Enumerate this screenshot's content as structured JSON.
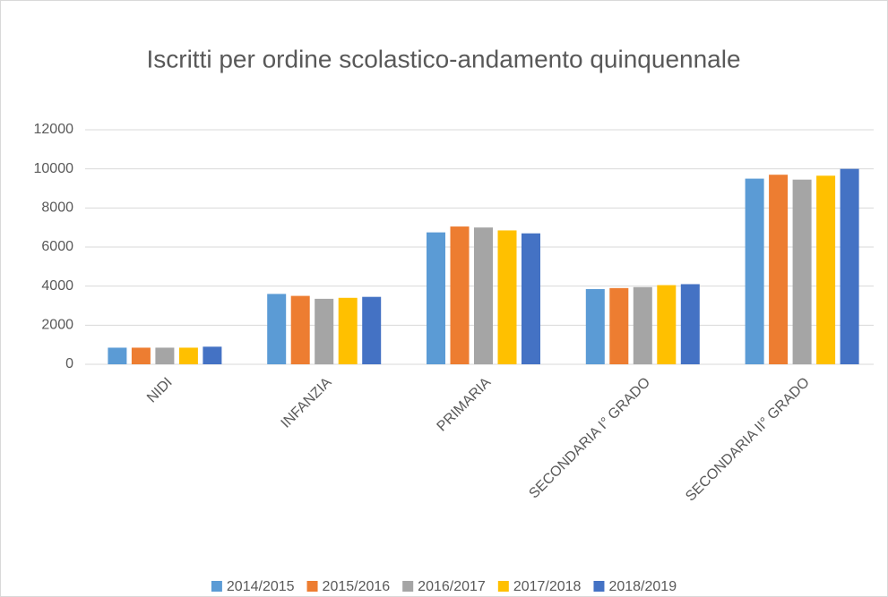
{
  "chart_data": {
    "type": "bar",
    "title": "Iscritti per ordine scolastico-andamento quinquennale",
    "categories": [
      "NIDI",
      "INFANZIA",
      "PRIMARIA",
      "SECONDARIA I° GRADO",
      "SECONDARIA II° GRADO"
    ],
    "series": [
      {
        "name": "2014/2015",
        "color": "#5b9bd5",
        "values": [
          850,
          3600,
          6750,
          3850,
          9500
        ]
      },
      {
        "name": "2015/2016",
        "color": "#ed7d31",
        "values": [
          850,
          3500,
          7050,
          3900,
          9700
        ]
      },
      {
        "name": "2016/2017",
        "color": "#a5a5a5",
        "values": [
          850,
          3350,
          7000,
          3950,
          9450
        ]
      },
      {
        "name": "2017/2018",
        "color": "#ffc000",
        "values": [
          850,
          3400,
          6850,
          4050,
          9650
        ]
      },
      {
        "name": "2018/2019",
        "color": "#4472c4",
        "values": [
          900,
          3450,
          6700,
          4100,
          10000
        ]
      }
    ],
    "ylim": [
      0,
      12000
    ],
    "yticks": [
      0,
      2000,
      4000,
      6000,
      8000,
      10000,
      12000
    ],
    "grid": true,
    "legend": "bottom"
  }
}
